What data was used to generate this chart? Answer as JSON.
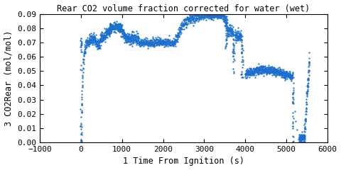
{
  "title": "Rear CO2 volume fraction corrected for water (wet)",
  "xlabel": "1 Time From Ignition (s)",
  "ylabel": "3 CO2Rear (mol/mol)",
  "xlim": [
    -1000,
    6000
  ],
  "ylim": [
    0,
    0.09
  ],
  "xticks": [
    -1000,
    0,
    1000,
    2000,
    3000,
    4000,
    5000,
    6000
  ],
  "yticks": [
    0,
    0.01,
    0.02,
    0.03,
    0.04,
    0.05,
    0.06,
    0.07,
    0.08,
    0.09
  ],
  "color": "#1b6fce",
  "markersize": 1.8,
  "background_color": "#ffffff",
  "title_fontsize": 8.5,
  "label_fontsize": 8.5,
  "tick_fontsize": 8
}
